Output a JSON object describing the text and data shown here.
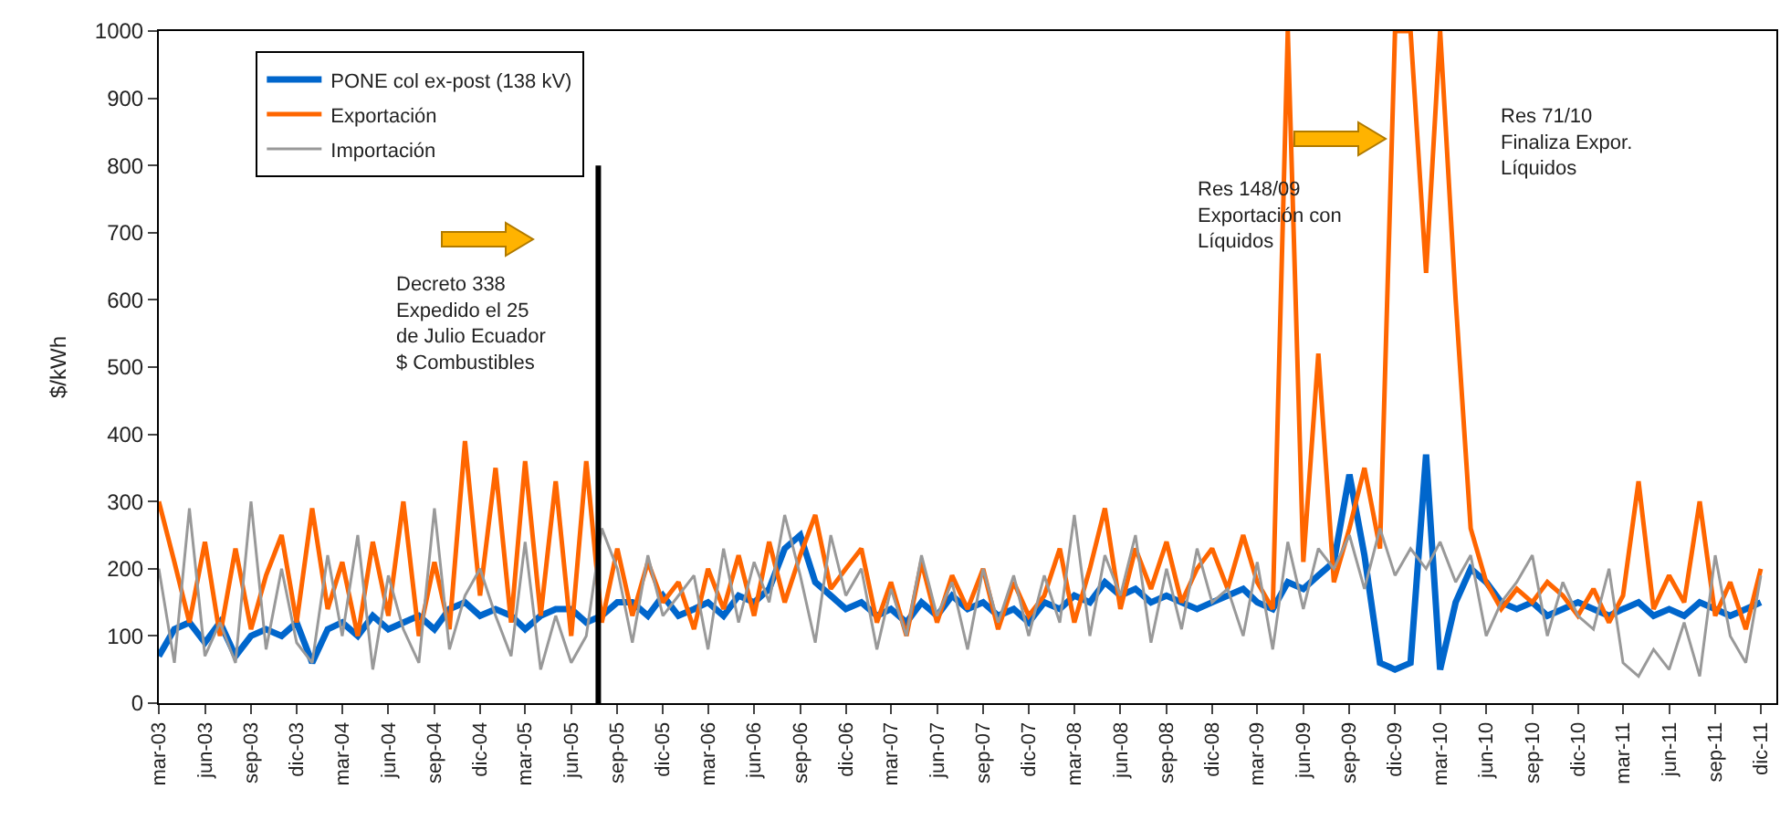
{
  "chart_data": {
    "type": "line",
    "ylabel": "$/kWh",
    "x": [
      "2003-03",
      "2003-04",
      "2003-05",
      "2003-06",
      "2003-07",
      "2003-08",
      "2003-09",
      "2003-10",
      "2003-11",
      "2003-12",
      "2004-01",
      "2004-02",
      "2004-03",
      "2004-04",
      "2004-05",
      "2004-06",
      "2004-07",
      "2004-08",
      "2004-09",
      "2004-10",
      "2004-11",
      "2004-12",
      "2005-01",
      "2005-02",
      "2005-03",
      "2005-04",
      "2005-05",
      "2005-06",
      "2005-07",
      "2005-08",
      "2005-09",
      "2005-10",
      "2005-11",
      "2005-12",
      "2006-01",
      "2006-02",
      "2006-03",
      "2006-04",
      "2006-05",
      "2006-06",
      "2006-07",
      "2006-08",
      "2006-09",
      "2006-10",
      "2006-11",
      "2006-12",
      "2007-01",
      "2007-02",
      "2007-03",
      "2007-04",
      "2007-05",
      "2007-06",
      "2007-07",
      "2007-08",
      "2007-09",
      "2007-10",
      "2007-11",
      "2007-12",
      "2008-01",
      "2008-02",
      "2008-03",
      "2008-04",
      "2008-05",
      "2008-06",
      "2008-07",
      "2008-08",
      "2008-09",
      "2008-10",
      "2008-11",
      "2008-12",
      "2009-01",
      "2009-02",
      "2009-03",
      "2009-04",
      "2009-05",
      "2009-06",
      "2009-07",
      "2009-08",
      "2009-09",
      "2009-10",
      "2009-11",
      "2009-12",
      "2010-01",
      "2010-02",
      "2010-03",
      "2010-04",
      "2010-05",
      "2010-06",
      "2010-07",
      "2010-08",
      "2010-09",
      "2010-10",
      "2010-11",
      "2010-12",
      "2011-01",
      "2011-02",
      "2011-03",
      "2011-04",
      "2011-05",
      "2011-06",
      "2011-07",
      "2011-08",
      "2011-09",
      "2011-10",
      "2011-11",
      "2011-12"
    ],
    "series": [
      {
        "name": "PONE col ex-post (138 kV)",
        "color": "#0066cc",
        "values": [
          70,
          110,
          120,
          90,
          120,
          70,
          100,
          110,
          100,
          120,
          60,
          110,
          120,
          100,
          130,
          110,
          120,
          130,
          110,
          140,
          150,
          130,
          140,
          130,
          110,
          130,
          140,
          140,
          120,
          130,
          150,
          150,
          130,
          160,
          130,
          140,
          150,
          130,
          160,
          150,
          170,
          230,
          250,
          180,
          160,
          140,
          150,
          130,
          140,
          120,
          150,
          130,
          160,
          140,
          150,
          130,
          140,
          120,
          150,
          140,
          160,
          150,
          180,
          160,
          170,
          150,
          160,
          150,
          140,
          150,
          160,
          170,
          150,
          140,
          180,
          170,
          190,
          210,
          340,
          220,
          60,
          50,
          60,
          370,
          50,
          150,
          200,
          180,
          150,
          140,
          150,
          130,
          140,
          150,
          140,
          130,
          140,
          150,
          130,
          140,
          130,
          150,
          140,
          130,
          140,
          150
        ]
      },
      {
        "name": "Exportación",
        "color": "#ff6600",
        "values": [
          300,
          210,
          120,
          240,
          100,
          230,
          110,
          190,
          250,
          120,
          290,
          140,
          210,
          100,
          240,
          130,
          300,
          100,
          210,
          110,
          390,
          160,
          350,
          120,
          360,
          130,
          330,
          100,
          360,
          120,
          230,
          130,
          210,
          150,
          180,
          110,
          200,
          140,
          220,
          130,
          240,
          150,
          220,
          280,
          170,
          200,
          230,
          120,
          180,
          100,
          210,
          120,
          190,
          140,
          200,
          110,
          180,
          130,
          160,
          230,
          120,
          200,
          290,
          140,
          230,
          170,
          240,
          150,
          200,
          230,
          170,
          250,
          180,
          140,
          1000,
          210,
          520,
          180,
          260,
          350,
          230,
          1000,
          1000,
          640,
          1000,
          600,
          260,
          180,
          140,
          170,
          150,
          180,
          160,
          130,
          170,
          120,
          160,
          330,
          140,
          190,
          150,
          300,
          130,
          180,
          110,
          200
        ]
      },
      {
        "name": "Importación",
        "color": "#999999",
        "values": [
          200,
          60,
          290,
          70,
          120,
          60,
          300,
          80,
          200,
          90,
          60,
          220,
          100,
          250,
          50,
          190,
          110,
          60,
          290,
          80,
          160,
          200,
          130,
          70,
          240,
          50,
          130,
          60,
          100,
          260,
          200,
          90,
          220,
          130,
          160,
          190,
          80,
          230,
          120,
          210,
          150,
          280,
          190,
          90,
          250,
          160,
          200,
          80,
          170,
          100,
          220,
          130,
          180,
          80,
          200,
          120,
          190,
          100,
          190,
          120,
          280,
          100,
          220,
          160,
          250,
          90,
          200,
          110,
          230,
          150,
          170,
          100,
          210,
          80,
          240,
          140,
          230,
          200,
          250,
          170,
          260,
          190,
          230,
          200,
          240,
          180,
          220,
          100,
          150,
          180,
          220,
          100,
          180,
          130,
          110,
          200,
          60,
          40,
          80,
          50,
          120,
          40,
          220,
          100,
          60,
          190
        ]
      }
    ],
    "xlim": [
      "2003-03-01",
      "2012-01-01"
    ],
    "xticks": [
      {
        "value": "2003-03-01",
        "label": "mar-03"
      },
      {
        "value": "2003-06-01",
        "label": "jun-03"
      },
      {
        "value": "2003-09-01",
        "label": "sep-03"
      },
      {
        "value": "2003-12-01",
        "label": "dic-03"
      },
      {
        "value": "2004-03-01",
        "label": "mar-04"
      },
      {
        "value": "2004-06-01",
        "label": "jun-04"
      },
      {
        "value": "2004-09-01",
        "label": "sep-04"
      },
      {
        "value": "2004-12-01",
        "label": "dic-04"
      },
      {
        "value": "2005-03-01",
        "label": "mar-05"
      },
      {
        "value": "2005-06-01",
        "label": "jun-05"
      },
      {
        "value": "2005-09-01",
        "label": "sep-05"
      },
      {
        "value": "2005-12-01",
        "label": "dic-05"
      },
      {
        "value": "2006-03-01",
        "label": "mar-06"
      },
      {
        "value": "2006-06-01",
        "label": "jun-06"
      },
      {
        "value": "2006-09-01",
        "label": "sep-06"
      },
      {
        "value": "2006-12-01",
        "label": "dic-06"
      },
      {
        "value": "2007-03-01",
        "label": "mar-07"
      },
      {
        "value": "2007-06-01",
        "label": "jun-07"
      },
      {
        "value": "2007-09-01",
        "label": "sep-07"
      },
      {
        "value": "2007-12-01",
        "label": "dic-07"
      },
      {
        "value": "2008-03-01",
        "label": "mar-08"
      },
      {
        "value": "2008-06-01",
        "label": "jun-08"
      },
      {
        "value": "2008-09-01",
        "label": "sep-08"
      },
      {
        "value": "2008-12-01",
        "label": "dic-08"
      },
      {
        "value": "2009-03-01",
        "label": "mar-09"
      },
      {
        "value": "2009-06-01",
        "label": "jun-09"
      },
      {
        "value": "2009-09-01",
        "label": "sep-09"
      },
      {
        "value": "2009-12-01",
        "label": "dic-09"
      },
      {
        "value": "2010-03-01",
        "label": "mar-10"
      },
      {
        "value": "2010-06-01",
        "label": "jun-10"
      },
      {
        "value": "2010-09-01",
        "label": "sep-10"
      },
      {
        "value": "2010-12-01",
        "label": "dic-10"
      },
      {
        "value": "2011-03-01",
        "label": "mar-11"
      },
      {
        "value": "2011-06-01",
        "label": "jun-11"
      },
      {
        "value": "2011-09-01",
        "label": "sep-11"
      },
      {
        "value": "2011-12-01",
        "label": "dic-11"
      }
    ],
    "ylim": [
      0,
      1000
    ],
    "yticks": [
      0,
      100,
      200,
      300,
      400,
      500,
      600,
      700,
      800,
      900,
      1000
    ],
    "grid": false,
    "legend": "top left",
    "line_style": "solid",
    "ref_lines": [
      {
        "axis": "x",
        "value": "2005-07-25",
        "color": "#000000"
      }
    ],
    "annotations": [
      "Decreto 338\nExpedido el 25\nde Julio Ecuador\n$ Combustibles",
      "Res 148/09\nExportación con\nLíquidos",
      "Res 71/10\nFinaliza Expor.\nLíquidos"
    ]
  }
}
